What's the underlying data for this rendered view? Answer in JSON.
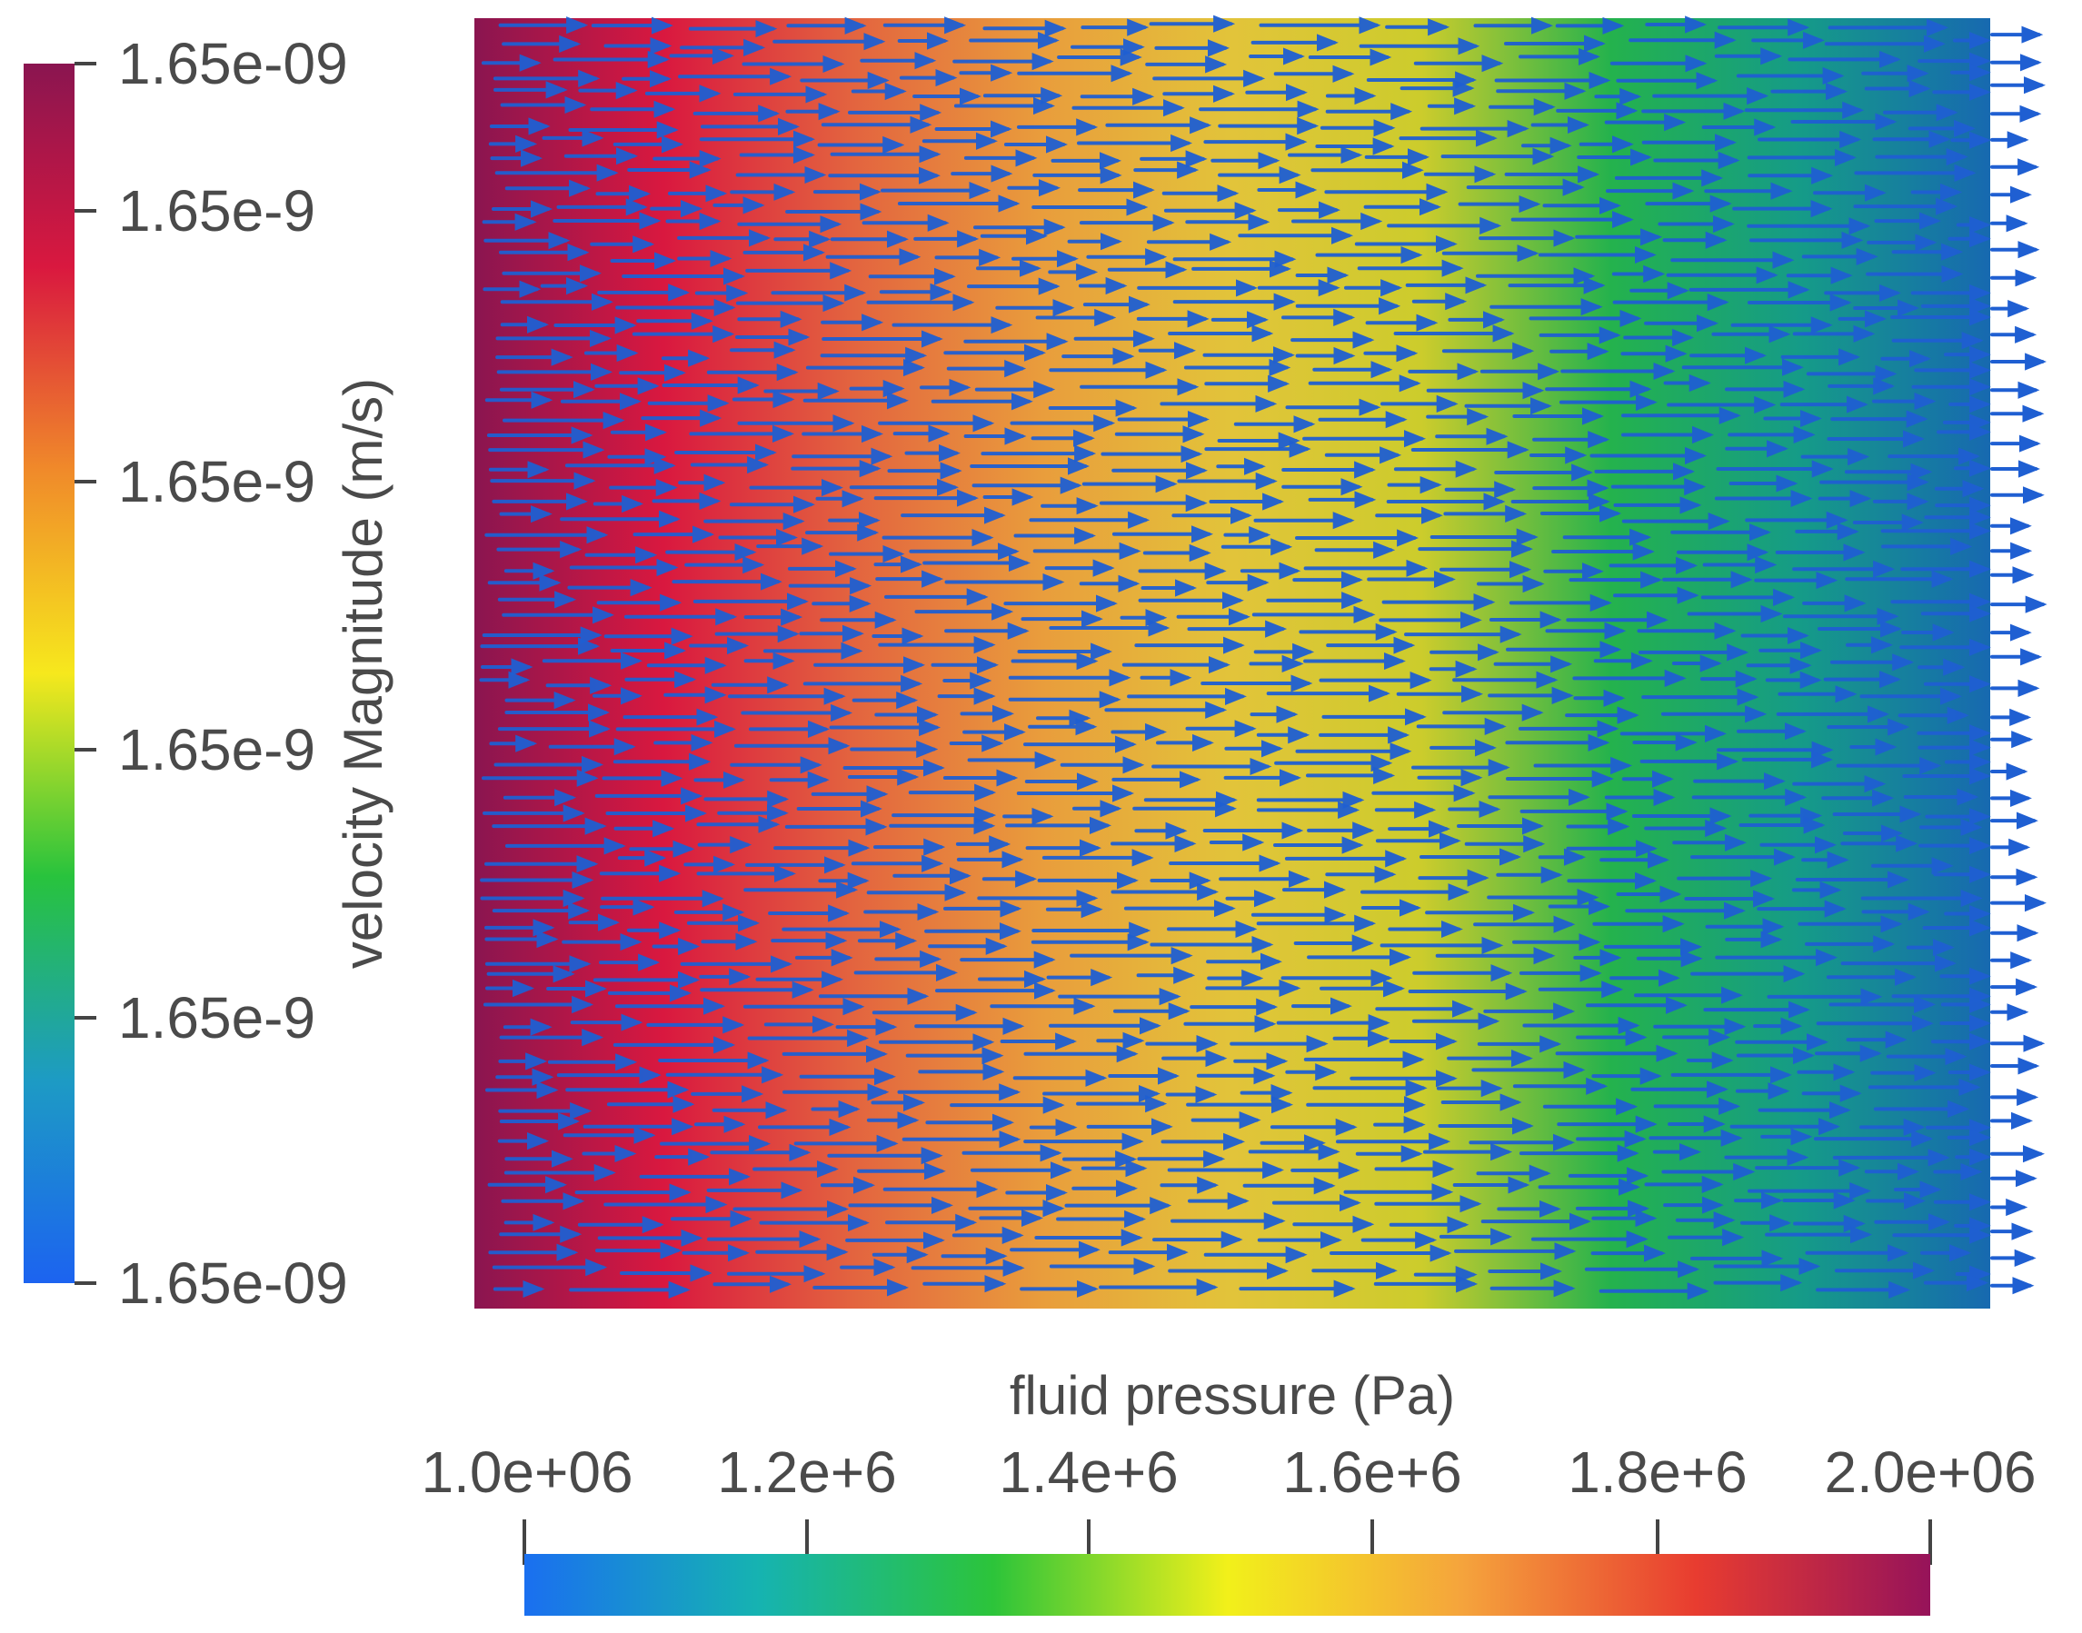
{
  "velocity_legend": {
    "title": "velocity Magnitude (m/s)",
    "ticks": [
      "1.65e-09",
      "1.65e-9",
      "1.65e-9",
      "1.65e-9",
      "1.65e-9",
      "1.65e-09"
    ],
    "colormap": [
      "#8a1550",
      "#d9183f",
      "#f08a2a",
      "#f6e81d",
      "#28c33d",
      "#1d9bc4",
      "#1c63f0"
    ]
  },
  "pressure_legend": {
    "title": "fluid pressure (Pa)",
    "ticks": [
      "1.0e+06",
      "1.2e+6",
      "1.4e+6",
      "1.6e+6",
      "1.8e+6",
      "2.0e+06"
    ],
    "colormap": [
      "#1a6ff0",
      "#16b3b1",
      "#2cc43a",
      "#f2f01a",
      "#f5a43c",
      "#e83c30",
      "#96135a"
    ]
  },
  "field": {
    "background_colormap": [
      "#8a1550",
      "#d9183f",
      "#e3643f",
      "#e99d3c",
      "#e2c43a",
      "#cccc2c",
      "#24b24d",
      "#159b88",
      "#1769b0"
    ],
    "vector_color": "#1f5fd2",
    "vector_direction": "right"
  }
}
